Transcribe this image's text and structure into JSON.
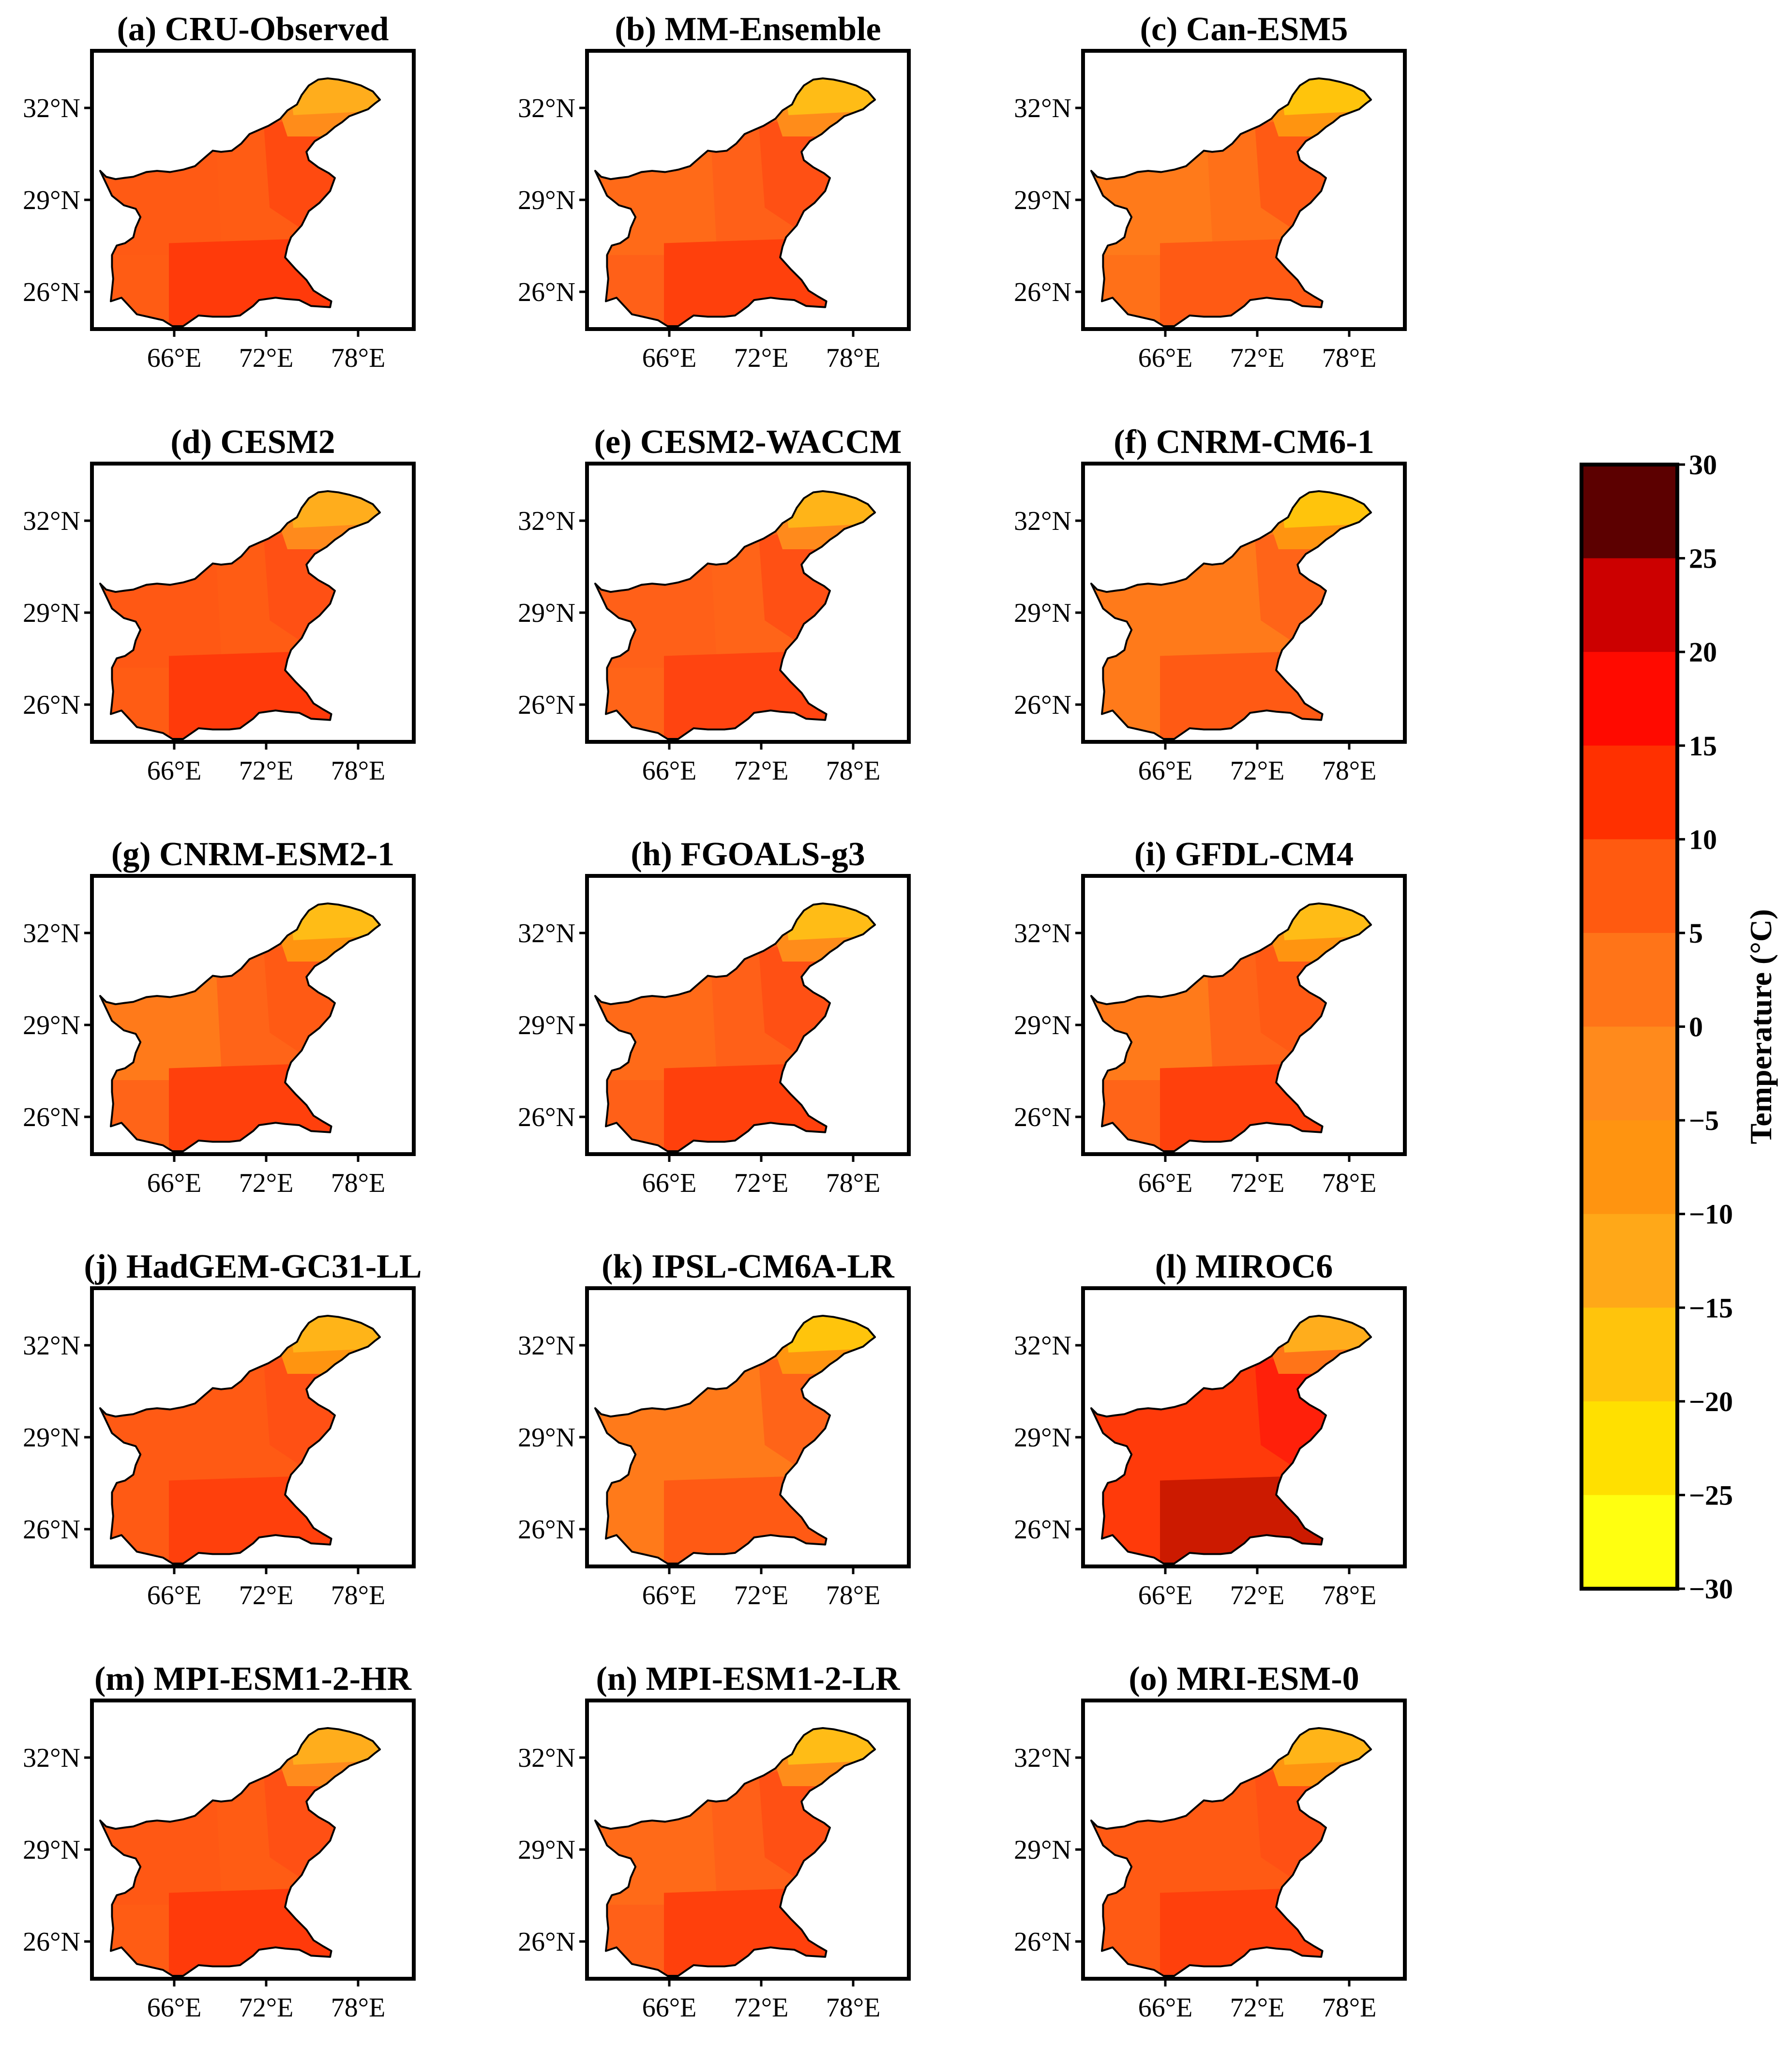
{
  "figure": {
    "type": "small-multiple maps",
    "variable": "Temperature",
    "region_outline": "Pakistan",
    "panels": [
      {
        "title": "(a) CRU-Observed",
        "scheme": 0
      },
      {
        "title": "(b) MM-Ensemble",
        "scheme": 1
      },
      {
        "title": "(c) Can-ESM5",
        "scheme": 2
      },
      {
        "title": "(d) CESM2",
        "scheme": 3
      },
      {
        "title": "(e) CESM2-WACCM",
        "scheme": 4
      },
      {
        "title": "(f) CNRM-CM6-1",
        "scheme": 5
      },
      {
        "title": "(g) CNRM-ESM2-1",
        "scheme": 6
      },
      {
        "title": "(h) FGOALS-g3",
        "scheme": 1
      },
      {
        "title": "(i) GFDL-CM4",
        "scheme": 6
      },
      {
        "title": "(j) HadGEM-GC31-LL",
        "scheme": 7
      },
      {
        "title": "(k) IPSL-CM6A-LR",
        "scheme": 5
      },
      {
        "title": "(l) MIROC6",
        "scheme": 8
      },
      {
        "title": "(m) MPI-ESM1-2-HR",
        "scheme": 3
      },
      {
        "title": "(n) MPI-ESM1-2-LR",
        "scheme": 1
      },
      {
        "title": "(o) MRI-ESM-0",
        "scheme": 7
      }
    ],
    "lat_ticks": [
      "32°N",
      "29°N",
      "26°N"
    ],
    "lon_ticks": [
      "66°E",
      "72°E",
      "78°E"
    ],
    "colorbar": {
      "title": "Temperature (°C)",
      "levels": [
        30,
        25,
        20,
        15,
        10,
        5,
        0,
        -5,
        -10,
        -15,
        -20,
        -25,
        -30
      ],
      "labels": [
        "30",
        "25",
        "20",
        "15",
        "10",
        "5",
        "0",
        "−5",
        "−10",
        "−15",
        "−20",
        "−25",
        "−30"
      ],
      "colors": [
        "#5c0000",
        "#cc0000",
        "#ff0a00",
        "#ff3000",
        "#ff5a10",
        "#ff7418",
        "#ff8a1c",
        "#ff9410",
        "#ffa818",
        "#ffc40c",
        "#ffe000",
        "#ffff10"
      ],
      "range": [
        -30,
        30
      ]
    },
    "schemes": [
      {
        "north": "#ffad1c",
        "northeast": "#ff8c1a",
        "punjab": "#ff4a10",
        "center": "#ff5c14",
        "west": "#ff5a14",
        "south": "#ff3a0a"
      },
      {
        "north": "#ffbc16",
        "northeast": "#ff8c1a",
        "punjab": "#ff5014",
        "center": "#ff6018",
        "west": "#ff6a18",
        "south": "#ff400c"
      },
      {
        "north": "#ffc40c",
        "northeast": "#ff9410",
        "punjab": "#ff5a14",
        "center": "#ff7018",
        "west": "#ff7a1a",
        "south": "#ff5a14"
      },
      {
        "north": "#ffad1c",
        "northeast": "#ff8a1c",
        "punjab": "#ff5014",
        "center": "#ff5c14",
        "west": "#ff5814",
        "south": "#ff3a0a"
      },
      {
        "north": "#ffb418",
        "northeast": "#ff8a1c",
        "punjab": "#ff5014",
        "center": "#ff6418",
        "west": "#ff6018",
        "south": "#ff4410"
      },
      {
        "north": "#ffc40c",
        "northeast": "#ff9410",
        "punjab": "#ff6418",
        "center": "#ff7a1a",
        "west": "#ff7a1a",
        "south": "#ff5a14"
      },
      {
        "north": "#ffbc16",
        "northeast": "#ff9410",
        "punjab": "#ff5a14",
        "center": "#ff6418",
        "west": "#ff7a1a",
        "south": "#ff400c"
      },
      {
        "north": "#ffb418",
        "northeast": "#ff9410",
        "punjab": "#ff5014",
        "center": "#ff5a14",
        "west": "#ff5a14",
        "south": "#ff400c"
      },
      {
        "north": "#ffad1c",
        "northeast": "#ff7418",
        "punjab": "#ff200a",
        "center": "#ff3a0a",
        "west": "#ff3a0a",
        "south": "#cc1a00"
      }
    ]
  }
}
